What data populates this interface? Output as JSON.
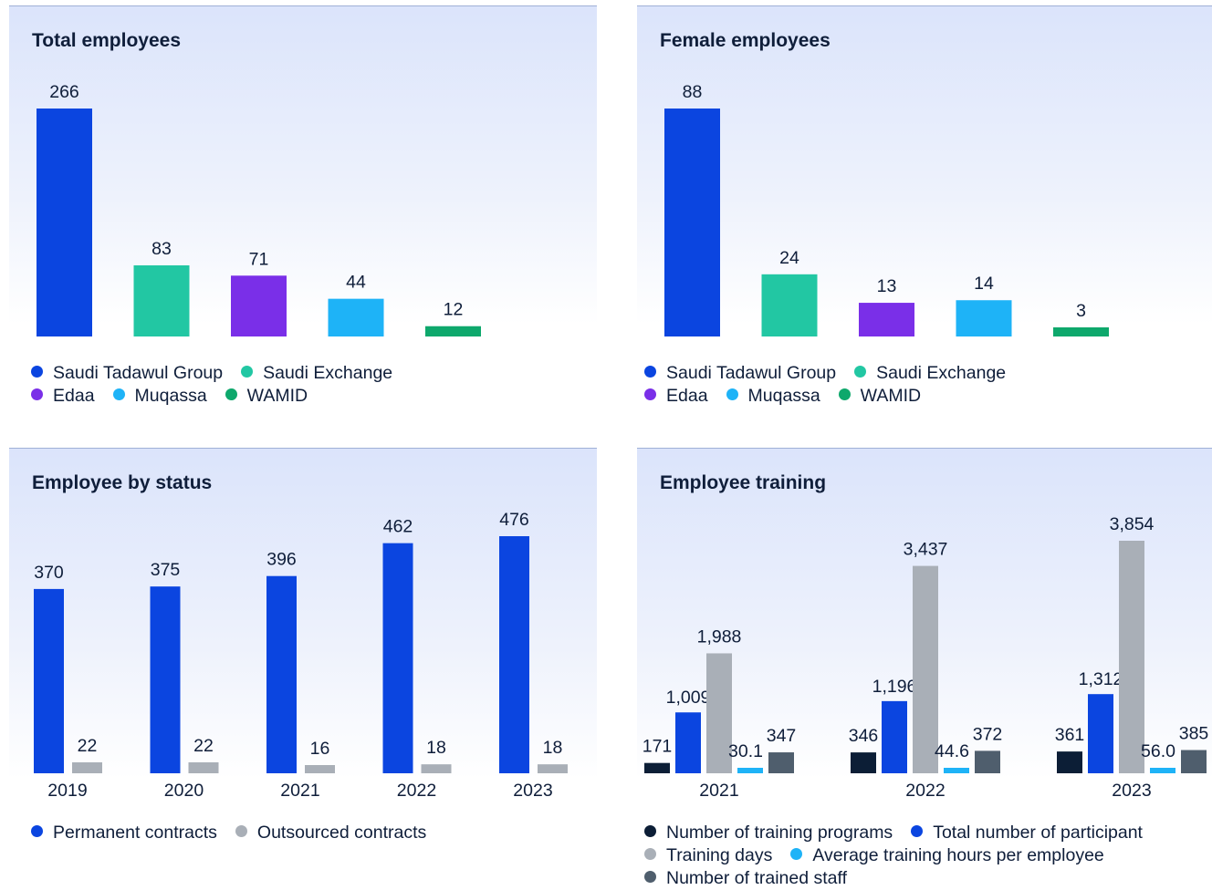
{
  "colors": {
    "tadawul": "#0b45e0",
    "exchange": "#22c7a3",
    "edaa": "#7a2fe8",
    "muqassa": "#1eb3f7",
    "wamid": "#0ea86c",
    "permanent": "#0b45e0",
    "outsourced": "#a9afb7",
    "programs": "#0c1e36",
    "participants": "#0b45e0",
    "training_days": "#a9afb7",
    "avg_hours": "#1eb3f7",
    "trained_staff": "#4f5e6d"
  },
  "chart_data": [
    {
      "type": "bar",
      "title": "Total employees",
      "categories": [
        "Saudi Tadawul Group",
        "Saudi Exchange",
        "Edaa",
        "Muqassa",
        "WAMID"
      ],
      "values": [
        266,
        83,
        71,
        44,
        12
      ],
      "value_labels": [
        "266",
        "83",
        "71",
        "44",
        "12"
      ],
      "color_keys": [
        "tadawul",
        "exchange",
        "edaa",
        "muqassa",
        "wamid"
      ],
      "legend": [
        [
          "Saudi Tadawul Group",
          "Saudi Exchange"
        ],
        [
          "Edaa",
          "Muqassa",
          "WAMID"
        ]
      ],
      "legend_colors": [
        [
          "tadawul",
          "exchange"
        ],
        [
          "edaa",
          "muqassa",
          "wamid"
        ]
      ],
      "legend_position": "bottom-left"
    },
    {
      "type": "bar",
      "title": "Female employees",
      "categories": [
        "Saudi Tadawul Group",
        "Saudi Exchange",
        "Edaa",
        "Muqassa",
        "WAMID"
      ],
      "values": [
        88,
        24,
        13,
        14,
        3
      ],
      "value_labels": [
        "88",
        "24",
        "13",
        "14",
        "3"
      ],
      "color_keys": [
        "tadawul",
        "exchange",
        "edaa",
        "muqassa",
        "wamid"
      ],
      "legend": [
        [
          "Saudi Tadawul Group",
          "Saudi Exchange"
        ],
        [
          "Edaa",
          "Muqassa",
          "WAMID"
        ]
      ],
      "legend_colors": [
        [
          "tadawul",
          "exchange"
        ],
        [
          "edaa",
          "muqassa",
          "wamid"
        ]
      ],
      "legend_position": "bottom-left"
    },
    {
      "type": "bar",
      "title": "Employee by status",
      "categories": [
        "2019",
        "2020",
        "2021",
        "2022",
        "2023"
      ],
      "series": [
        {
          "name": "Permanent contracts",
          "values": [
            370,
            375,
            396,
            462,
            476
          ],
          "labels": [
            "370",
            "375",
            "396",
            "462",
            "476"
          ],
          "color_key": "permanent"
        },
        {
          "name": "Outsourced contracts",
          "values": [
            22,
            22,
            16,
            18,
            18
          ],
          "labels": [
            "22",
            "22",
            "16",
            "18",
            "18"
          ],
          "color_key": "outsourced"
        }
      ],
      "legend": [
        [
          "Permanent contracts",
          "Outsourced contracts"
        ]
      ],
      "legend_colors": [
        [
          "permanent",
          "outsourced"
        ]
      ],
      "legend_position": "bottom-left"
    },
    {
      "type": "bar",
      "title": "Employee training",
      "categories": [
        "2021",
        "2022",
        "2023"
      ],
      "series": [
        {
          "name": "Number of training programs",
          "values": [
            171,
            346,
            361
          ],
          "labels": [
            "171",
            "346",
            "361"
          ],
          "color_key": "programs"
        },
        {
          "name": "Total number of participant",
          "values": [
            1009,
            1196,
            1312
          ],
          "labels": [
            "1,009",
            "1,196",
            "1,312"
          ],
          "color_key": "participants"
        },
        {
          "name": "Training days",
          "values": [
            1988,
            3437,
            3854
          ],
          "labels": [
            "1,988",
            "3,437",
            "3,854"
          ],
          "color_key": "training_days"
        },
        {
          "name": "Average training hours per employee",
          "values": [
            30.1,
            44.6,
            56.0
          ],
          "labels": [
            "30.1",
            "44.6",
            "56.0"
          ],
          "color_key": "avg_hours"
        },
        {
          "name": "Number of trained staff",
          "values": [
            347,
            372,
            385
          ],
          "labels": [
            "347",
            "372",
            "385"
          ],
          "color_key": "trained_staff"
        }
      ],
      "legend": [
        [
          "Number of training programs",
          "Total number of participant"
        ],
        [
          "Training days",
          "Average training hours per employee"
        ],
        [
          "Number of trained staff"
        ]
      ],
      "legend_colors": [
        [
          "programs",
          "participants"
        ],
        [
          "training_days",
          "avg_hours"
        ],
        [
          "trained_staff"
        ]
      ],
      "legend_position": "bottom-left"
    }
  ]
}
